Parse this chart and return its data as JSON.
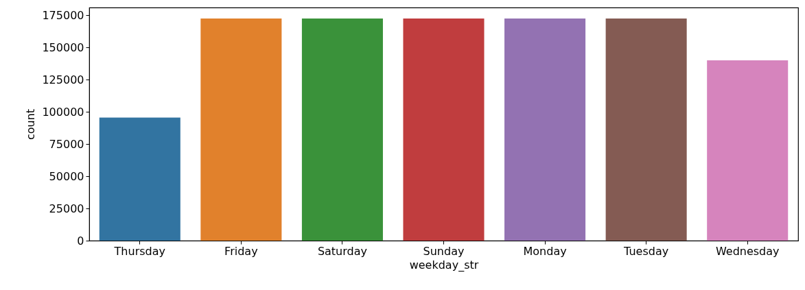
{
  "chart_data": {
    "type": "bar",
    "xlabel": "weekday_str",
    "ylabel": "count",
    "categories": [
      "Thursday",
      "Friday",
      "Saturday",
      "Sunday",
      "Monday",
      "Tuesday",
      "Wednesday"
    ],
    "values": [
      95500,
      172500,
      172500,
      172500,
      172500,
      172500,
      140000
    ],
    "colors": [
      "#3274a1",
      "#e1812c",
      "#3a923a",
      "#c03d3e",
      "#9372b2",
      "#845b53",
      "#d684bd"
    ],
    "ylim": [
      0,
      181000
    ],
    "yticks": [
      0,
      25000,
      50000,
      75000,
      100000,
      125000,
      150000,
      175000
    ],
    "grid": false
  }
}
